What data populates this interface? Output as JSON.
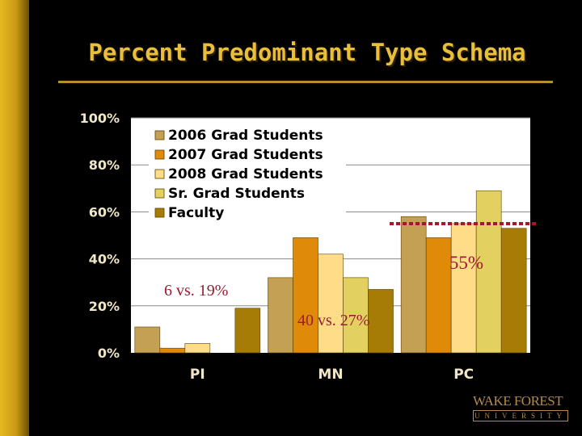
{
  "title": "Percent Predominant Type Schema",
  "colors": {
    "background": "#000000",
    "accent": "#e9bf3a",
    "plot_bg": "#ffffff",
    "reference_line": "#9b1b2f"
  },
  "chart_data": {
    "type": "bar",
    "title": "",
    "xlabel": "",
    "ylabel": "",
    "categories": [
      "PI",
      "MN",
      "PC"
    ],
    "ylim": [
      0,
      100
    ],
    "yticks": [
      "0%",
      "20%",
      "40%",
      "60%",
      "80%",
      "100%"
    ],
    "grid": true,
    "legend_position": "top-left",
    "series": [
      {
        "name": "2006 Grad Students",
        "color": "#c4a055",
        "values": [
          11,
          32,
          58
        ]
      },
      {
        "name": "2007 Grad Students",
        "color": "#e08a0a",
        "values": [
          2,
          49,
          49
        ]
      },
      {
        "name": "2008 Grad Students",
        "color": "#ffdd88",
        "values": [
          4,
          42,
          55
        ]
      },
      {
        "name": "Sr. Grad Students",
        "color": "#e2d060",
        "values": [
          0,
          32,
          69
        ]
      },
      {
        "name": "Faculty",
        "color": "#a67c06",
        "values": [
          19,
          27,
          53
        ]
      }
    ],
    "reference_line": {
      "value": 55,
      "label": "55%"
    },
    "annotations": [
      "6 vs. 19%",
      "40 vs. 27%"
    ]
  },
  "logo": {
    "main": "WAKE FOREST",
    "sub": "UNIVERSITY"
  }
}
